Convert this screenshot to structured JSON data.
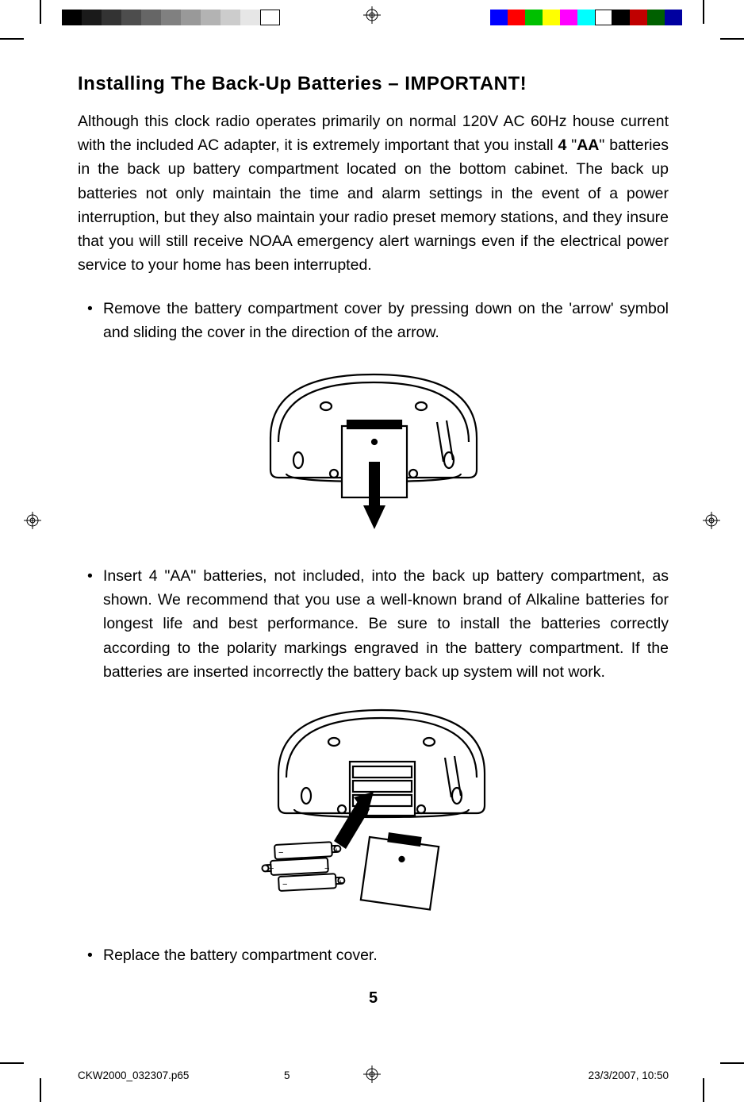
{
  "heading": "Installing The Back-Up Batteries – IMPORTANT!",
  "intro_parts": {
    "p1": "Although this clock radio operates primarily on normal 120V AC 60Hz house current with the included AC adapter, it is extremely important that you install ",
    "p2": "4",
    "p3": " \"",
    "p4": "AA",
    "p5": "\" batteries in the back up battery compartment located on the bottom cabinet. The back up batteries not only maintain the time and alarm settings in the event of a power interruption, but they also maintain your radio preset memory stations, and they insure that you will still receive NOAA emergency alert warnings even if the electrical power service to your home has been interrupted."
  },
  "bullets": {
    "b1": "Remove the battery compartment cover by pressing down on the 'arrow' symbol and sliding the cover in the direction of the arrow.",
    "b2": "Insert 4 \"AA\" batteries, not included, into the back up battery compartment, as shown. We recommend that you use a well-known brand of Alkaline batteries for longest life and best performance. Be sure to install the batteries correctly according to the polarity markings engraved in the battery compartment. If the batteries are inserted incorrectly the battery back up system will not work.",
    "b3": "Replace the battery compartment cover."
  },
  "page_number": "5",
  "footer": {
    "file": "CKW2000_032307.p65",
    "page": "5",
    "datetime": "23/3/2007, 10:50"
  },
  "grayscale_bar": [
    "#000000",
    "#1a1a1a",
    "#333333",
    "#4d4d4d",
    "#666666",
    "#808080",
    "#999999",
    "#b3b3b3",
    "#cccccc",
    "#e6e6e6",
    "#ffffff"
  ],
  "color_bar": [
    "#0000ff",
    "#ff0000",
    "#00c000",
    "#ffff00",
    "#ff00ff",
    "#00ffff",
    "#ffffff",
    "#000000",
    "#c00000",
    "#006000",
    "#0000a0"
  ],
  "fig1_stroke": "#000000",
  "fig2_stroke": "#000000"
}
